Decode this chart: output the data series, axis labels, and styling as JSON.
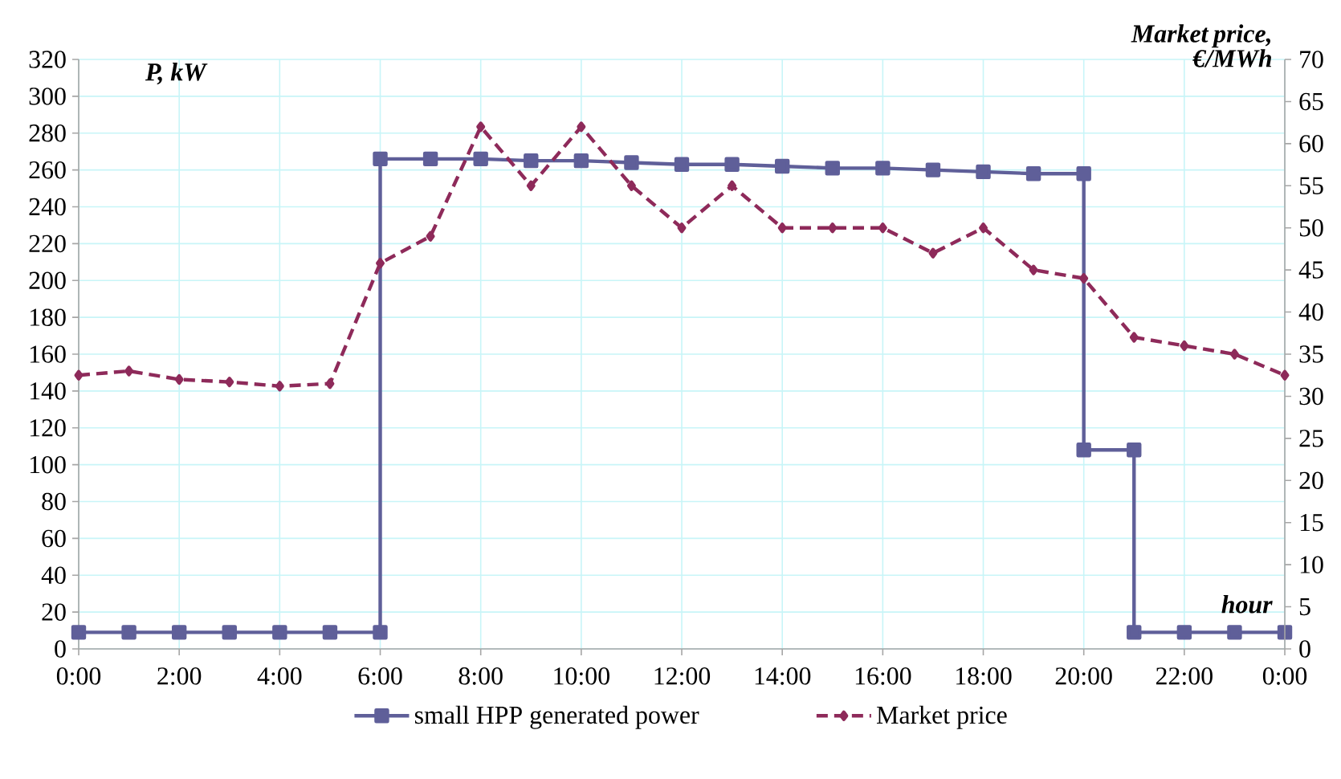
{
  "chart_data": {
    "type": "line",
    "xlabel": "hour",
    "ylabel": "P, kW",
    "y2label": "Market price, €/MWh",
    "xlim": [
      0,
      24
    ],
    "xticks": [
      {
        "value": 0,
        "label": "0:00"
      },
      {
        "value": 2,
        "label": "2:00"
      },
      {
        "value": 4,
        "label": "4:00"
      },
      {
        "value": 6,
        "label": "6:00"
      },
      {
        "value": 8,
        "label": "8:00"
      },
      {
        "value": 10,
        "label": "10:00"
      },
      {
        "value": 12,
        "label": "12:00"
      },
      {
        "value": 14,
        "label": "14:00"
      },
      {
        "value": 16,
        "label": "16:00"
      },
      {
        "value": 18,
        "label": "18:00"
      },
      {
        "value": 20,
        "label": "20:00"
      },
      {
        "value": 22,
        "label": "22:00"
      },
      {
        "value": 24,
        "label": "0:00"
      }
    ],
    "ylim": [
      0,
      320
    ],
    "yticks": [
      0,
      20,
      40,
      60,
      80,
      100,
      120,
      140,
      160,
      180,
      200,
      220,
      240,
      260,
      280,
      300,
      320
    ],
    "y2lim": [
      0,
      70
    ],
    "y2ticks": [
      0,
      5,
      10,
      15,
      20,
      25,
      30,
      35,
      40,
      45,
      50,
      55,
      60,
      65,
      70
    ],
    "grid": true,
    "legend": "bottom",
    "series": [
      {
        "name": "small HPP generated power",
        "color": "#5f5f99",
        "marker": "square",
        "line_style": "solid",
        "x": [
          0,
          1,
          2,
          3,
          4,
          5,
          6,
          6,
          7,
          8,
          9,
          10,
          11,
          12,
          13,
          14,
          15,
          16,
          17,
          18,
          19,
          20,
          20,
          21,
          21,
          22,
          23,
          24
        ],
        "values": [
          9,
          9,
          9,
          9,
          9,
          9,
          9,
          266,
          266,
          266,
          265,
          265,
          264,
          263,
          263,
          262,
          261,
          261,
          260,
          259,
          258,
          258,
          108,
          108,
          9,
          9,
          9,
          9
        ]
      },
      {
        "name": "Market price",
        "color": "#8e2a5a",
        "marker": "diamond",
        "line_style": "dashed",
        "axis": "y2",
        "x": [
          0,
          1,
          2,
          3,
          4,
          5,
          6,
          7,
          8,
          9,
          10,
          11,
          12,
          13,
          14,
          15,
          16,
          17,
          18,
          19,
          20,
          21,
          22,
          23,
          24
        ],
        "values": [
          32.5,
          33,
          32,
          31.7,
          31.2,
          31.5,
          45.8,
          49,
          62,
          55,
          62,
          55,
          50,
          55,
          50,
          50,
          50,
          47,
          50,
          45,
          44,
          37,
          36,
          35,
          32.5
        ]
      }
    ]
  }
}
